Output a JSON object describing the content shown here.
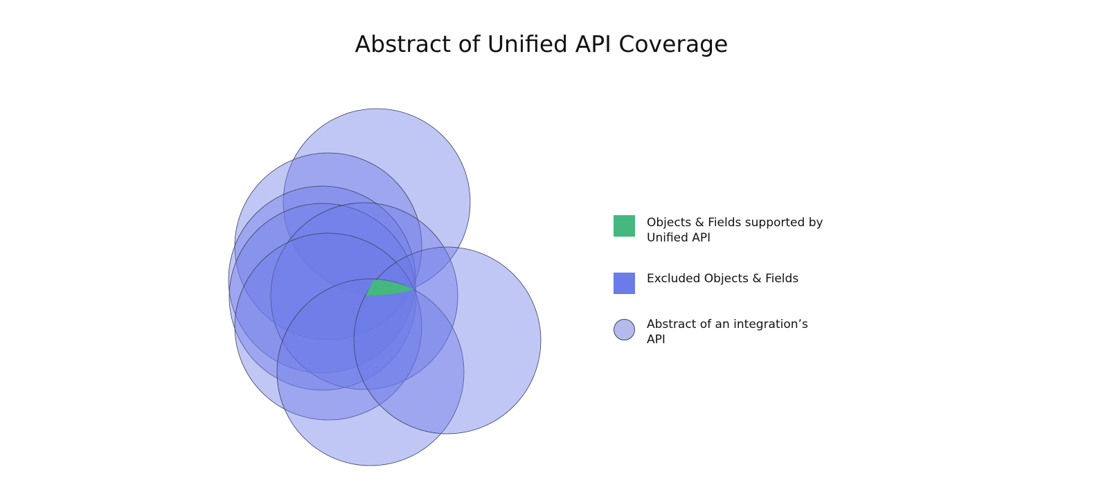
{
  "title": "Abstract of Unified API Coverage",
  "colors": {
    "supported": "#44b87e",
    "excluded": "#6b7be8",
    "circle_fill": "#6c7ae6",
    "circle_legend": "#b4bbec",
    "stroke": "#3a3f5c"
  },
  "legend": [
    {
      "label": "Objects & Fields supported by Unified API",
      "shape": "square",
      "color": "#44b87e"
    },
    {
      "label": "Excluded Objects & Fields",
      "shape": "square",
      "color": "#6b7be8"
    },
    {
      "label": "Abstract of an integration’s API",
      "shape": "circle",
      "color": "#b4bbec"
    }
  ]
}
